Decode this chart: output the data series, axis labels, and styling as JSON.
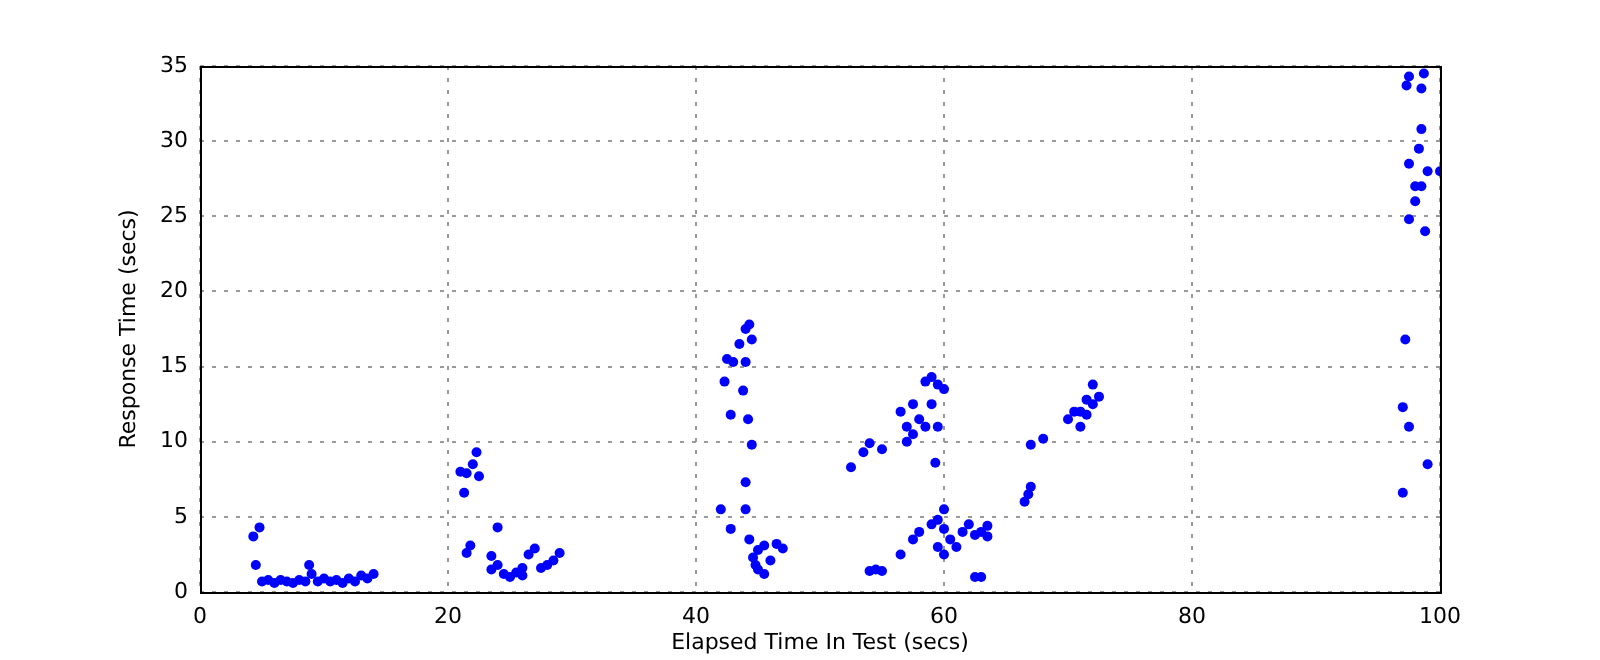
{
  "chart_data": {
    "type": "scatter",
    "xlabel": "Elapsed Time In Test (secs)",
    "ylabel": "Response Time (secs)",
    "xlim": [
      0,
      100
    ],
    "xticks": [
      0,
      20,
      40,
      60,
      80,
      100
    ],
    "ylim": [
      0,
      35
    ],
    "yticks": [
      0,
      5,
      10,
      15,
      20,
      25,
      30,
      35
    ],
    "grid": true,
    "legend": false,
    "marker": "circle",
    "series": [
      {
        "color": "#0000ff",
        "x": [
          4.3,
          4.8,
          4.5,
          5,
          5.5,
          6,
          6.5,
          7,
          7.5,
          8,
          8.5,
          8.8,
          9,
          9.5,
          10,
          10.5,
          11,
          11.5,
          12,
          12.5,
          13,
          13.5,
          14,
          21,
          21.5,
          22,
          22.3,
          22.5,
          21.3,
          21.5,
          21.8,
          24,
          23.5,
          24,
          24.5,
          25,
          25.5,
          26,
          26.5,
          27,
          27.5,
          28,
          28.5,
          29,
          26,
          23.5,
          42,
          42.3,
          42.5,
          42.8,
          43,
          43.5,
          44,
          44.3,
          44.5,
          44,
          43.8,
          44.2,
          44.5,
          44,
          44,
          42.8,
          44.3,
          44.6,
          45,
          45,
          45.5,
          46,
          46.5,
          47,
          45.5,
          44.8,
          52.5,
          53.5,
          54,
          55,
          54,
          54.5,
          55,
          56.5,
          57.5,
          58,
          59,
          60,
          59.5,
          60,
          56.5,
          57,
          57.5,
          57.5,
          58,
          58.5,
          59,
          59.5,
          59,
          58.5,
          57,
          59.5,
          59.3,
          60,
          59.5,
          60,
          60.5,
          61,
          61.5,
          62,
          62.5,
          63,
          62.5,
          63,
          63.5,
          63.5,
          66.5,
          66.8,
          67,
          67,
          68,
          70,
          70.5,
          71,
          71,
          71.5,
          72,
          72,
          72.5,
          71.5,
          97,
          97,
          97.2,
          97.5,
          97.5,
          97.5,
          97.3,
          97.5,
          98,
          98,
          98.3,
          98.5,
          98.5,
          98.8,
          98.5,
          98.7,
          99,
          99,
          100
        ],
        "values": [
          3.7,
          4.3,
          1.8,
          0.7,
          0.8,
          0.6,
          0.8,
          0.7,
          0.6,
          0.8,
          0.7,
          1.8,
          1.2,
          0.7,
          0.9,
          0.7,
          0.8,
          0.6,
          0.9,
          0.7,
          1.1,
          0.9,
          1.2,
          8,
          7.9,
          8.5,
          9.3,
          7.7,
          6.6,
          2.6,
          3.1,
          4.3,
          2.4,
          1.8,
          1.2,
          1,
          1.3,
          1.6,
          2.5,
          2.9,
          1.6,
          1.8,
          2.1,
          2.6,
          1.1,
          1.5,
          5.5,
          14,
          15.5,
          11.8,
          15.3,
          16.5,
          17.5,
          17.8,
          16.8,
          15.3,
          13.4,
          11.5,
          9.8,
          7.3,
          5.5,
          4.2,
          3.5,
          2.3,
          1.5,
          2.8,
          3.1,
          2.1,
          3.2,
          2.9,
          1.2,
          1.8,
          8.3,
          9.3,
          9.9,
          9.5,
          1.4,
          1.5,
          1.4,
          2.5,
          3.5,
          4,
          4.5,
          5.5,
          4.8,
          4.2,
          12,
          11,
          10.5,
          12.5,
          11.5,
          14,
          14.3,
          13.8,
          12.5,
          11,
          10,
          11,
          8.6,
          13.5,
          3,
          2.5,
          3.5,
          3,
          4,
          4.5,
          1,
          1,
          3.8,
          4,
          4.4,
          3.7,
          6,
          6.5,
          7,
          9.8,
          10.2,
          11.5,
          12,
          11,
          12,
          12.8,
          13.8,
          12.5,
          13,
          11.8,
          12.3,
          6.6,
          16.8,
          11,
          24.8,
          28.5,
          33.7,
          34.3,
          26,
          27,
          29.5,
          30.8,
          27,
          24,
          33.5,
          34.5,
          28,
          8.5,
          28
        ]
      }
    ]
  }
}
